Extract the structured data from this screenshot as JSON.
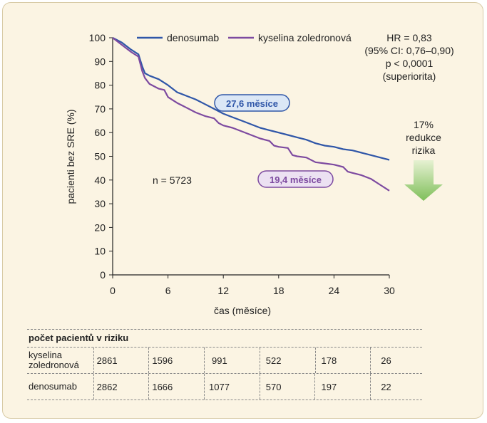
{
  "chart_data": {
    "type": "line",
    "xlabel": "čas (měsíce)",
    "ylabel": "pacienti bez SRE (%)",
    "xlim": [
      0,
      30
    ],
    "ylim": [
      0,
      100
    ],
    "xticks": [
      0,
      6,
      12,
      18,
      24,
      30
    ],
    "yticks": [
      0,
      10,
      20,
      30,
      40,
      50,
      60,
      70,
      80,
      90,
      100
    ],
    "series": [
      {
        "name": "denosumab",
        "color": "#2f56a8",
        "x": [
          0,
          1,
          2,
          2.8,
          3.2,
          3.5,
          4,
          5,
          6,
          7,
          8,
          9,
          10,
          11,
          12,
          13,
          14,
          15,
          16,
          17,
          18,
          19,
          20,
          21,
          22,
          23,
          24,
          25,
          26,
          27,
          28,
          29,
          30
        ],
        "y": [
          100,
          98,
          95,
          93,
          88,
          85,
          84,
          82.5,
          80,
          77,
          75.5,
          74,
          72,
          70,
          68,
          66.5,
          65,
          63.5,
          62,
          61,
          60,
          59,
          58,
          57,
          55.5,
          54.5,
          54,
          53,
          52.5,
          51.5,
          50.5,
          49.5,
          48.5
        ]
      },
      {
        "name": "kyselina zoledronová",
        "color": "#7d4aa0",
        "x": [
          0,
          1,
          2,
          2.8,
          3.2,
          3.5,
          4,
          5,
          5.6,
          6,
          7,
          8,
          9,
          10,
          11,
          11.5,
          12,
          13,
          14,
          15,
          16,
          17,
          17.5,
          18,
          19,
          19.5,
          20,
          21,
          22,
          23,
          24,
          25,
          25.5,
          26,
          27,
          28,
          29,
          30
        ],
        "y": [
          100,
          97,
          94,
          92,
          86,
          83,
          80.5,
          78.5,
          78,
          75,
          72.5,
          70.5,
          68.5,
          67,
          66,
          64,
          63,
          62,
          60.5,
          59,
          57.5,
          56.5,
          54.5,
          54,
          53.5,
          50.5,
          50,
          49.5,
          47.5,
          47,
          46.5,
          45.5,
          43.5,
          43,
          42,
          40.5,
          38,
          35.5
        ]
      }
    ],
    "annotations": {
      "denosumab_median": "27,6 měsíce",
      "zoledronic_median": "19,4 měsíce",
      "n": "n = 5723",
      "hr": "HR = 0,83",
      "ci": "(95% CI: 0,76–0,90)",
      "p": "p < 0,0001",
      "sup": "(superiorita)",
      "reduction_1": "17%",
      "reduction_2": "redukce",
      "reduction_3": "rizika"
    },
    "grid": false,
    "legend": "top"
  },
  "risk_table": {
    "title": "počet pacientů v riziku",
    "rows": [
      {
        "label_1": "kyselina",
        "label_2": "zoledronová",
        "values": [
          "2861",
          "1596",
          "991",
          "522",
          "178",
          "26"
        ]
      },
      {
        "label_1": "denosumab",
        "label_2": "",
        "values": [
          "2862",
          "1666",
          "1077",
          "570",
          "197",
          "22"
        ]
      }
    ]
  }
}
